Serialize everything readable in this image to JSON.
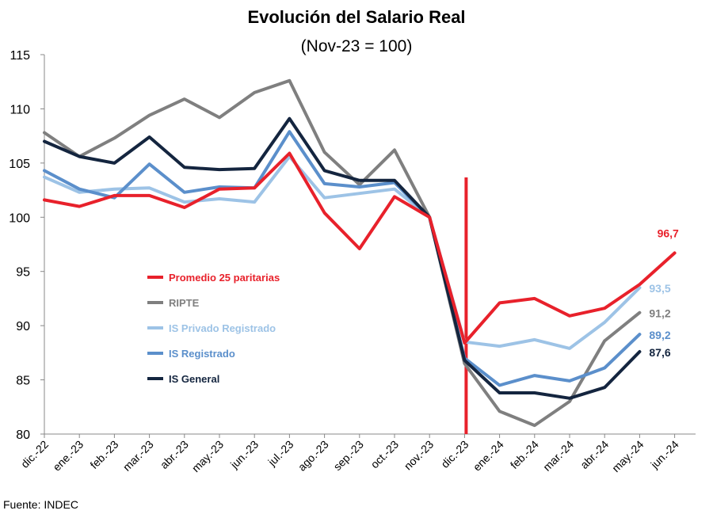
{
  "chart_data": {
    "type": "line",
    "title": "Evolución del Salario Real",
    "subtitle": "(Nov-23 = 100)",
    "source": "Fuente: INDEC",
    "ylim": [
      80,
      115
    ],
    "yticks": [
      80,
      85,
      90,
      95,
      100,
      105,
      110,
      115
    ],
    "grid": false,
    "legend_position": "left-middle",
    "categories": [
      "dic.-22",
      "ene.-23",
      "feb.-23",
      "mar.-23",
      "abr.-23",
      "may.-23",
      "jun.-23",
      "jul.-23",
      "ago.-23",
      "sep.-23",
      "oct.-23",
      "nov.-23",
      "dic.-23",
      "ene.-24",
      "feb.-24",
      "mar.-24",
      "abr.-24",
      "may.-24",
      "jun.-24"
    ],
    "marker_line": {
      "category": "dic.-23",
      "color": "#e8212b"
    },
    "series": [
      {
        "name": "RIPTE",
        "color": "#7f7f7f",
        "values": [
          107.8,
          105.6,
          107.3,
          109.4,
          110.9,
          109.2,
          111.5,
          112.6,
          106.0,
          103.0,
          106.2,
          100.0,
          86.5,
          82.1,
          80.8,
          83.0,
          88.6,
          91.2,
          null
        ],
        "end_label": "91,2"
      },
      {
        "name": "IS Privado Registrado",
        "color": "#9dc3e6",
        "values": [
          103.7,
          102.3,
          102.6,
          102.7,
          101.4,
          101.7,
          101.4,
          105.6,
          101.8,
          102.2,
          102.6,
          100.0,
          88.5,
          88.1,
          88.7,
          87.9,
          90.3,
          93.5,
          null
        ],
        "end_label": "93,5"
      },
      {
        "name": "IS Registrado",
        "color": "#5b8fcb",
        "values": [
          104.3,
          102.6,
          101.8,
          104.9,
          102.3,
          102.8,
          102.7,
          107.9,
          103.1,
          102.8,
          103.2,
          100.0,
          87.0,
          84.5,
          85.4,
          84.9,
          86.1,
          89.2,
          null
        ],
        "end_label": "89,2"
      },
      {
        "name": "IS General",
        "color": "#14253f",
        "values": [
          107.0,
          105.6,
          105.0,
          107.4,
          104.6,
          104.4,
          104.5,
          109.1,
          104.3,
          103.4,
          103.4,
          100.0,
          86.8,
          83.8,
          83.8,
          83.3,
          84.3,
          87.6,
          null
        ],
        "end_label": "87,6"
      },
      {
        "name": "Promedio 25 paritarias",
        "color": "#e8212b",
        "values": [
          101.6,
          101.0,
          102.0,
          102.0,
          100.9,
          102.6,
          102.7,
          105.9,
          100.4,
          97.1,
          101.9,
          100.0,
          88.4,
          92.1,
          92.5,
          90.9,
          91.6,
          93.8,
          96.7
        ],
        "end_label": "96,7"
      }
    ]
  }
}
